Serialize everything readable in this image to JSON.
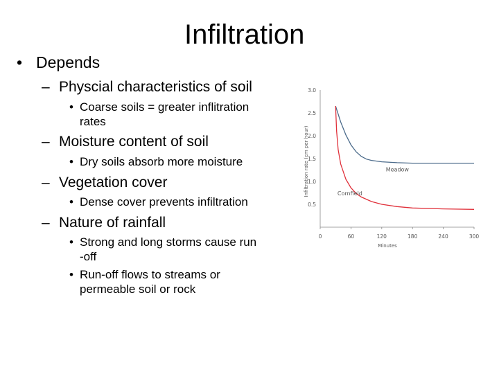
{
  "slide": {
    "title": "Infiltration",
    "bullets": [
      {
        "marker": "•",
        "text": "Depends"
      },
      {
        "marker": "–",
        "text": "Physcial characteristics of soil"
      },
      {
        "marker": "•",
        "text": "Coarse soils = greater inflitration"
      },
      {
        "marker": "",
        "text": "rates"
      },
      {
        "marker": "–",
        "text": "Moisture content of soil"
      },
      {
        "marker": "•",
        "text": "Dry soils absorb more moisture"
      },
      {
        "marker": "–",
        "text": "Vegetation cover"
      },
      {
        "marker": "•",
        "text": "Dense cover prevents infiltration"
      },
      {
        "marker": "–",
        "text": "Nature of rainfall"
      },
      {
        "marker": "•",
        "text": "Strong and long storms cause run"
      },
      {
        "marker": "",
        "text": "-off"
      },
      {
        "marker": "•",
        "text": "Run-off flows to streams or"
      },
      {
        "marker": "",
        "text": "permeable soil or rock"
      }
    ]
  },
  "chart_data": {
    "type": "line",
    "title": "",
    "xlabel": "Minutes",
    "ylabel": "Infiltration rate (cm per hour)",
    "xlim": [
      0,
      300
    ],
    "ylim": [
      0,
      3.0
    ],
    "x_ticks": [
      "0",
      "60",
      "120",
      "180",
      "240",
      "300"
    ],
    "y_ticks": [
      "0.5",
      "1.0",
      "1.5",
      "2.0",
      "2.5",
      "3.0"
    ],
    "grid": false,
    "series": [
      {
        "name": "Meadow",
        "color": "#4a6a8a",
        "x": [
          30,
          40,
          50,
          60,
          70,
          80,
          90,
          100,
          120,
          150,
          180,
          240,
          300
        ],
        "y": [
          2.65,
          2.3,
          2.02,
          1.8,
          1.65,
          1.55,
          1.49,
          1.46,
          1.43,
          1.41,
          1.4,
          1.4,
          1.4
        ]
      },
      {
        "name": "Cornfield",
        "color": "#e0303a",
        "x": [
          30,
          32,
          35,
          40,
          50,
          60,
          70,
          80,
          100,
          120,
          150,
          180,
          240,
          300
        ],
        "y": [
          2.65,
          2.1,
          1.7,
          1.38,
          1.05,
          0.86,
          0.74,
          0.66,
          0.56,
          0.5,
          0.45,
          0.42,
          0.4,
          0.39
        ]
      }
    ]
  }
}
